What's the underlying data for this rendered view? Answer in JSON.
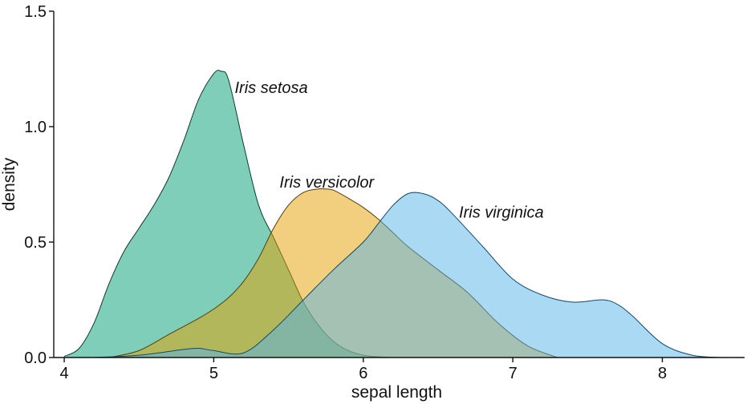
{
  "chart_data": {
    "type": "area",
    "title": "",
    "xlabel": "sepal length",
    "ylabel": "density",
    "xlim": [
      3.93,
      8.55
    ],
    "ylim": [
      0,
      1.5
    ],
    "xticks": [
      4,
      5,
      6,
      7,
      8
    ],
    "xtick_labels": [
      "4",
      "5",
      "6",
      "7",
      "8"
    ],
    "yticks": [
      0,
      0.5,
      1.0,
      1.5
    ],
    "ytick_labels": [
      "0.0",
      "0.5",
      "1.0",
      "1.5"
    ],
    "grid": false,
    "legend": "none",
    "series": [
      {
        "name": "Iris setosa",
        "color": "#009E73",
        "stroke": "#0b3d2c",
        "annotation_pos": [
          5.14,
          1.17
        ],
        "x": [
          4.0,
          4.1,
          4.2,
          4.3,
          4.4,
          4.5,
          4.6,
          4.7,
          4.8,
          4.9,
          5.0,
          5.05,
          5.1,
          5.2,
          5.3,
          5.4,
          5.5,
          5.6,
          5.7,
          5.8,
          5.9,
          6.0,
          6.1,
          6.2
        ],
        "y": [
          0.005,
          0.04,
          0.15,
          0.32,
          0.46,
          0.56,
          0.66,
          0.78,
          0.94,
          1.12,
          1.23,
          1.24,
          1.2,
          0.92,
          0.66,
          0.52,
          0.38,
          0.24,
          0.14,
          0.07,
          0.03,
          0.01,
          0.003,
          0.0
        ]
      },
      {
        "name": "Iris versicolor",
        "color": "#E69F00",
        "stroke": "#5a3e00",
        "annotation_pos": [
          5.44,
          0.76
        ],
        "x": [
          4.3,
          4.5,
          4.7,
          4.9,
          5.0,
          5.1,
          5.2,
          5.3,
          5.4,
          5.5,
          5.6,
          5.7,
          5.75,
          5.8,
          5.9,
          6.0,
          6.1,
          6.2,
          6.3,
          6.5,
          6.7,
          6.9,
          7.1,
          7.3
        ],
        "y": [
          0.0,
          0.03,
          0.1,
          0.17,
          0.21,
          0.26,
          0.33,
          0.43,
          0.56,
          0.66,
          0.715,
          0.73,
          0.73,
          0.725,
          0.69,
          0.65,
          0.6,
          0.54,
          0.48,
          0.38,
          0.28,
          0.15,
          0.05,
          0.0
        ]
      },
      {
        "name": "Iris virginica",
        "color": "#56B4E9",
        "stroke": "#0b4a73",
        "annotation_pos": [
          6.64,
          0.63
        ],
        "x": [
          4.2,
          4.5,
          4.8,
          4.9,
          5.0,
          5.2,
          5.4,
          5.6,
          5.8,
          6.0,
          6.1,
          6.2,
          6.3,
          6.4,
          6.5,
          6.6,
          6.8,
          7.0,
          7.2,
          7.4,
          7.6,
          7.7,
          7.8,
          8.0,
          8.2,
          8.4
        ],
        "y": [
          0.0,
          0.01,
          0.035,
          0.04,
          0.03,
          0.02,
          0.12,
          0.25,
          0.38,
          0.5,
          0.58,
          0.66,
          0.71,
          0.71,
          0.68,
          0.62,
          0.48,
          0.34,
          0.27,
          0.24,
          0.25,
          0.23,
          0.18,
          0.06,
          0.01,
          0.0
        ]
      }
    ]
  }
}
